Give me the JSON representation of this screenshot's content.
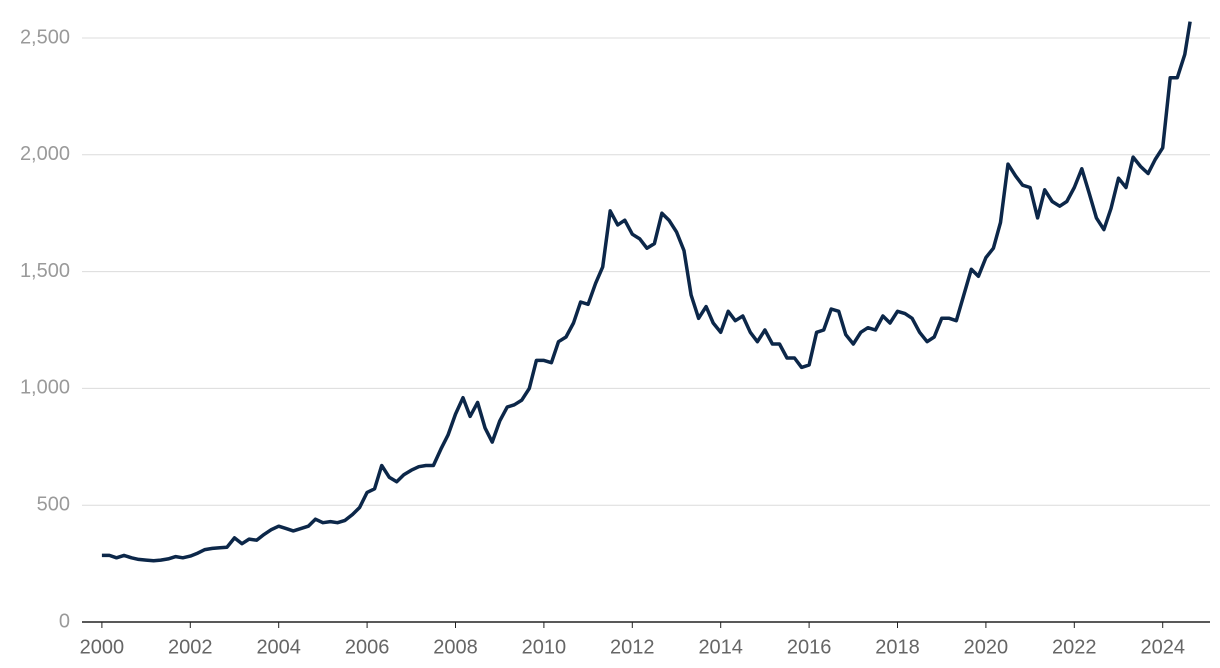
{
  "chart_data": {
    "type": "line",
    "x": [
      2000,
      2000.17,
      2000.33,
      2000.5,
      2000.67,
      2000.83,
      2001,
      2001.17,
      2001.33,
      2001.5,
      2001.67,
      2001.83,
      2002,
      2002.17,
      2002.33,
      2002.5,
      2002.67,
      2002.83,
      2003,
      2003.17,
      2003.33,
      2003.5,
      2003.67,
      2003.83,
      2004,
      2004.17,
      2004.33,
      2004.5,
      2004.67,
      2004.83,
      2005,
      2005.17,
      2005.33,
      2005.5,
      2005.67,
      2005.83,
      2006,
      2006.17,
      2006.33,
      2006.5,
      2006.67,
      2006.83,
      2007,
      2007.17,
      2007.33,
      2007.5,
      2007.67,
      2007.83,
      2008,
      2008.17,
      2008.33,
      2008.5,
      2008.67,
      2008.83,
      2009,
      2009.17,
      2009.33,
      2009.5,
      2009.67,
      2009.83,
      2010,
      2010.17,
      2010.33,
      2010.5,
      2010.67,
      2010.83,
      2011,
      2011.17,
      2011.33,
      2011.5,
      2011.67,
      2011.83,
      2012,
      2012.17,
      2012.33,
      2012.5,
      2012.67,
      2012.83,
      2013,
      2013.17,
      2013.33,
      2013.5,
      2013.67,
      2013.83,
      2014,
      2014.17,
      2014.33,
      2014.5,
      2014.67,
      2014.83,
      2015,
      2015.17,
      2015.33,
      2015.5,
      2015.67,
      2015.83,
      2016,
      2016.17,
      2016.33,
      2016.5,
      2016.67,
      2016.83,
      2017,
      2017.17,
      2017.33,
      2017.5,
      2017.67,
      2017.83,
      2018,
      2018.17,
      2018.33,
      2018.5,
      2018.67,
      2018.83,
      2019,
      2019.17,
      2019.33,
      2019.5,
      2019.67,
      2019.83,
      2020,
      2020.17,
      2020.33,
      2020.5,
      2020.67,
      2020.83,
      2021,
      2021.17,
      2021.33,
      2021.5,
      2021.67,
      2021.83,
      2022,
      2022.17,
      2022.33,
      2022.5,
      2022.67,
      2022.83,
      2023,
      2023.17,
      2023.33,
      2023.5,
      2023.67,
      2023.83,
      2024,
      2024.17,
      2024.33,
      2024.5,
      2024.62
    ],
    "series": [
      {
        "color": "#0c2749",
        "values": [
          285,
          285,
          275,
          285,
          275,
          268,
          265,
          262,
          265,
          270,
          280,
          275,
          282,
          295,
          310,
          315,
          318,
          320,
          360,
          335,
          355,
          350,
          375,
          395,
          410,
          400,
          390,
          400,
          410,
          440,
          425,
          430,
          425,
          435,
          460,
          490,
          555,
          570,
          670,
          620,
          600,
          630,
          650,
          665,
          670,
          670,
          740,
          800,
          890,
          960,
          880,
          940,
          830,
          770,
          860,
          920,
          930,
          950,
          1000,
          1120,
          1120,
          1110,
          1200,
          1220,
          1280,
          1370,
          1360,
          1450,
          1520,
          1760,
          1700,
          1720,
          1660,
          1640,
          1600,
          1620,
          1750,
          1720,
          1670,
          1590,
          1400,
          1300,
          1350,
          1280,
          1240,
          1330,
          1290,
          1310,
          1240,
          1200,
          1250,
          1190,
          1190,
          1130,
          1130,
          1090,
          1100,
          1240,
          1250,
          1340,
          1330,
          1230,
          1190,
          1240,
          1260,
          1250,
          1310,
          1280,
          1330,
          1320,
          1300,
          1240,
          1200,
          1220,
          1300,
          1300,
          1290,
          1400,
          1510,
          1480,
          1560,
          1600,
          1710,
          1960,
          1910,
          1870,
          1860,
          1730,
          1850,
          1800,
          1780,
          1800,
          1860,
          1940,
          1840,
          1730,
          1680,
          1770,
          1900,
          1860,
          1990,
          1950,
          1920,
          1980,
          2030,
          2330,
          2330,
          2430,
          2570
        ]
      }
    ],
    "xlim": [
      1999.55,
      2025.07
    ],
    "xticks": [
      2000,
      2002,
      2004,
      2006,
      2008,
      2010,
      2012,
      2014,
      2016,
      2018,
      2020,
      2022,
      2024
    ],
    "ylim": [
      0,
      2500
    ],
    "yticks": [
      0,
      500,
      {
        "value": 1000,
        "label": "1,000"
      },
      {
        "value": 1500,
        "label": "1,500"
      },
      {
        "value": 2000,
        "label": "2,000"
      },
      {
        "value": 2500,
        "label": "2,500"
      }
    ],
    "grid": true
  }
}
